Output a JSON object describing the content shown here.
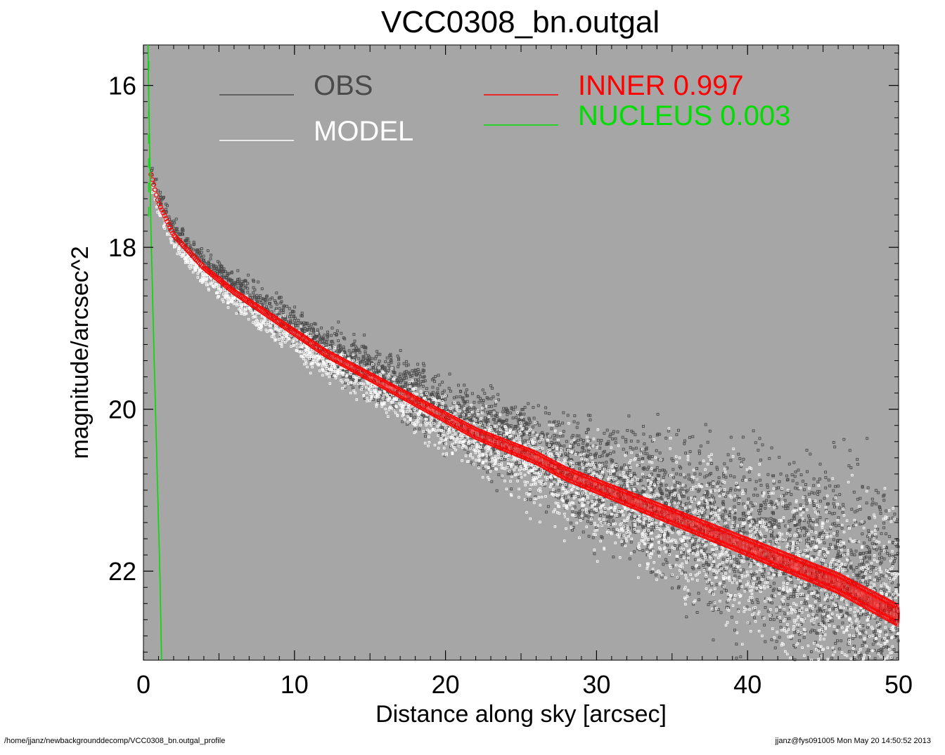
{
  "chart_data": {
    "type": "scatter",
    "title": "VCC0308_bn.outgal",
    "xlabel": "Distance along sky [arcsec]",
    "ylabel": "magnitude/arcsec^2",
    "xlim": [
      0,
      50
    ],
    "ylim": [
      23.1,
      15.5
    ],
    "y_inverted": true,
    "x_ticks": [
      "0",
      "10",
      "20",
      "30",
      "40",
      "50"
    ],
    "y_ticks": [
      "16",
      "18",
      "20",
      "22"
    ],
    "background": "#a6a6a6",
    "legend": [
      {
        "label": "OBS",
        "color": "#4a4a4a"
      },
      {
        "label": "MODEL",
        "color": "#ffffff"
      },
      {
        "label": "INNER  0.997",
        "color": "#ff0000"
      },
      {
        "label": "NUCLEUS  0.003",
        "color": "#00dd00"
      }
    ],
    "series": [
      {
        "name": "INNER",
        "color": "#ff0000",
        "x": [
          0.5,
          1,
          2,
          3,
          4,
          5,
          6,
          8,
          10,
          12,
          14,
          16,
          18,
          20,
          22,
          24,
          26,
          28,
          30,
          32,
          34,
          36,
          38,
          40,
          42,
          44,
          46,
          48,
          50
        ],
        "y": [
          17.1,
          17.45,
          17.85,
          18.05,
          18.25,
          18.4,
          18.55,
          18.8,
          19.05,
          19.3,
          19.5,
          19.7,
          19.9,
          20.1,
          20.3,
          20.45,
          20.6,
          20.8,
          20.95,
          21.1,
          21.25,
          21.4,
          21.55,
          21.7,
          21.85,
          22.0,
          22.15,
          22.35,
          22.55
        ]
      },
      {
        "name": "NUCLEUS",
        "color": "#00dd00",
        "x": [
          0.3,
          0.5,
          0.7,
          0.9,
          1.1,
          1.2
        ],
        "y": [
          15.5,
          17.8,
          19.3,
          20.7,
          22.1,
          23.1
        ]
      },
      {
        "name": "OBS",
        "color": "#4a4a4a",
        "scatter_band_half_width_mag": [
          0.05,
          0.1,
          0.15,
          0.2,
          0.3,
          0.45,
          0.6,
          0.8
        ]
      },
      {
        "name": "MODEL",
        "color": "#ffffff",
        "scatter_band_half_width_mag": [
          0.03,
          0.08,
          0.12,
          0.18,
          0.28,
          0.4,
          0.55,
          0.7
        ]
      }
    ]
  },
  "footer": {
    "left": "/home/jjanz/newbackgrounddecomp/VCC0308_bn.outgal_profile",
    "right": "jjanz@fys091005  Mon May 20 14:50:52 2013"
  }
}
